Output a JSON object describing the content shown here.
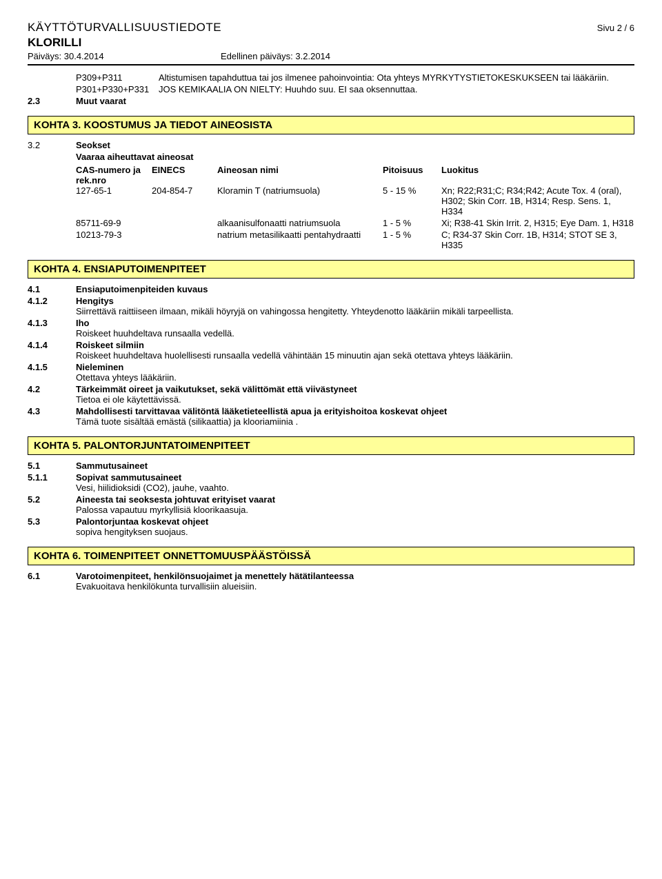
{
  "header": {
    "doc_title": "KÄYTTÖTURVALLISUUSTIEDOTE",
    "page": "Sivu 2 / 6",
    "product": "KLORILLI",
    "date_label": "Päiväys: 30.4.2014",
    "prev_date_label": "Edellinen päiväys: 3.2.2014"
  },
  "pcodes": [
    {
      "code": "P309+P311",
      "text": "Altistumisen tapahduttua tai jos ilmenee pahoinvointia: Ota yhteys MYRKYTYSTIETOKESKUKSEEN tai lääkäriin."
    },
    {
      "code": "P301+P330+P331",
      "text": "JOS KEMIKAALIA ON NIELTY: Huuhdo suu. EI saa oksennuttaa."
    }
  ],
  "s2_3": {
    "num": "2.3",
    "label": "Muut vaarat"
  },
  "kohta3": {
    "title": "KOHTA 3. KOOSTUMUS JA TIEDOT AINEOSISTA",
    "num": "3.2",
    "seokset": "Seokset",
    "vaaraa": "Vaaraa aiheuttavat aineosat",
    "cols": {
      "c1": "CAS-numero ja rek.nro",
      "c2": "EINECS",
      "c3": "Aineosan nimi",
      "c4": "Pitoisuus",
      "c5": "Luokitus"
    },
    "rows": [
      {
        "c1": "127-65-1",
        "c2": "204-854-7",
        "c3": "Kloramin T (natriumsuola)",
        "c4": "5 - 15 %",
        "c5": "Xn; R22;R31;C; R34;R42; Acute Tox. 4 (oral), H302; Skin Corr. 1B, H314; Resp. Sens. 1, H334"
      },
      {
        "c1": "85711-69-9",
        "c2": "",
        "c3": "alkaanisulfonaatti natriumsuola",
        "c4": "1 - 5 %",
        "c5": "Xi; R38-41 Skin Irrit. 2, H315; Eye Dam. 1, H318"
      },
      {
        "c1": "10213-79-3",
        "c2": "",
        "c3": "natrium metasilikaatti pentahydraatti",
        "c4": "1 - 5 %",
        "c5": "C; R34-37 Skin Corr. 1B, H314; STOT SE 3, H335"
      }
    ]
  },
  "kohta4": {
    "title": "KOHTA 4. ENSIAPUTOIMENPITEET",
    "items": [
      {
        "num": "4.1",
        "title": "Ensiaputoimenpiteiden kuvaus",
        "body": "",
        "bold": true
      },
      {
        "num": "4.1.2",
        "title": "Hengitys",
        "body": "Siirrettävä raittiiseen ilmaan, mikäli höyryjä on vahingossa hengitetty. Yhteydenotto lääkäriin mikäli tarpeellista.",
        "bold": true
      },
      {
        "num": "4.1.3",
        "title": "Iho",
        "body": "Roiskeet huuhdeltava runsaalla vedellä.",
        "bold": true
      },
      {
        "num": "4.1.4",
        "title": "Roiskeet silmiin",
        "body": "Roiskeet huuhdeltava huolellisesti runsaalla vedellä vähintään 15 minuutin ajan sekä otettava yhteys lääkäriin.",
        "bold": true
      },
      {
        "num": "4.1.5",
        "title": "Nieleminen",
        "body": "Otettava yhteys lääkäriin.",
        "bold": true
      },
      {
        "num": "4.2",
        "title": "Tärkeimmät oireet ja vaikutukset, sekä välittömät että viivästyneet",
        "body": "Tietoa ei ole käytettävissä.",
        "bold": true
      },
      {
        "num": "4.3",
        "title": "Mahdollisesti tarvittavaa välitöntä lääketieteellistä apua ja erityishoitoa koskevat ohjeet",
        "body": "Tämä tuote sisältää emästä (silikaattia) ja klooriamiinia .",
        "bold": true
      }
    ]
  },
  "kohta5": {
    "title": "KOHTA 5. PALONTORJUNTATOIMENPITEET",
    "items": [
      {
        "num": "5.1",
        "title": "Sammutusaineet",
        "body": "",
        "bold": true
      },
      {
        "num": "5.1.1",
        "title": "Sopivat sammutusaineet",
        "body": "Vesi,  hiilidioksidi (CO2),   jauhe,   vaahto.",
        "bold": true
      },
      {
        "num": "5.2",
        "title": "Aineesta tai seoksesta johtuvat erityiset vaarat",
        "body": "Palossa vapautuu myrkyllisiä kloorikaasuja.",
        "bold": true
      },
      {
        "num": "5.3",
        "title": "Palontorjuntaa koskevat ohjeet",
        "body": "sopiva hengityksen suojaus.",
        "bold": true
      }
    ]
  },
  "kohta6": {
    "title": "KOHTA 6. TOIMENPITEET ONNETTOMUUSPÄÄSTÖISSÄ",
    "items": [
      {
        "num": "6.1",
        "title": "Varotoimenpiteet, henkilönsuojaimet ja menettely hätätilanteessa",
        "body": "Evakuoitava henkilökunta turvallisiin alueisiin.",
        "bold": true
      }
    ]
  }
}
